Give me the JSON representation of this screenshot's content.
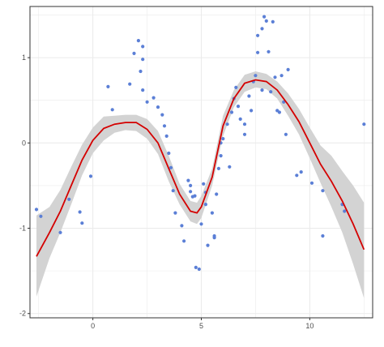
{
  "chart_data": {
    "type": "scatter",
    "title": "",
    "xlabel": "",
    "ylabel": "",
    "xlim": [
      -2.9,
      12.9
    ],
    "ylim": [
      -2.05,
      1.6
    ],
    "x_ticks": [
      0,
      5,
      10
    ],
    "y_ticks": [
      -2,
      -1,
      0,
      1
    ],
    "x_tick_labels": [
      "0",
      "5",
      "10"
    ],
    "y_tick_labels": [
      "-2",
      "-1",
      "0",
      "1"
    ],
    "grid": true,
    "colors": {
      "points": "#5b7fd6",
      "smooth_line": "#d40000",
      "confidence_band": "#d3d3d3",
      "grid": "#ebebeb",
      "axis": "#333333"
    },
    "points": [
      {
        "x": -2.6,
        "y": -0.78
      },
      {
        "x": -2.4,
        "y": -0.86
      },
      {
        "x": -1.5,
        "y": -1.05
      },
      {
        "x": -1.1,
        "y": -0.66
      },
      {
        "x": -0.6,
        "y": -0.81
      },
      {
        "x": -0.5,
        "y": -0.94
      },
      {
        "x": -0.1,
        "y": -0.39
      },
      {
        "x": 0.7,
        "y": 0.66
      },
      {
        "x": 0.9,
        "y": 0.39
      },
      {
        "x": 1.7,
        "y": 0.69
      },
      {
        "x": 1.9,
        "y": 1.05
      },
      {
        "x": 2.1,
        "y": 1.2
      },
      {
        "x": 2.3,
        "y": 1.13
      },
      {
        "x": 2.3,
        "y": 0.98
      },
      {
        "x": 2.2,
        "y": 0.84
      },
      {
        "x": 2.3,
        "y": 0.62
      },
      {
        "x": 2.5,
        "y": 0.48
      },
      {
        "x": 2.8,
        "y": 0.53
      },
      {
        "x": 3.0,
        "y": 0.42
      },
      {
        "x": 3.2,
        "y": 0.33
      },
      {
        "x": 3.3,
        "y": 0.2
      },
      {
        "x": 3.4,
        "y": 0.08
      },
      {
        "x": 3.5,
        "y": -0.12
      },
      {
        "x": 3.6,
        "y": -0.29
      },
      {
        "x": 3.7,
        "y": -0.56
      },
      {
        "x": 3.8,
        "y": -0.82
      },
      {
        "x": 4.1,
        "y": -0.97
      },
      {
        "x": 4.2,
        "y": -1.15
      },
      {
        "x": 4.4,
        "y": -0.44
      },
      {
        "x": 4.5,
        "y": -0.5
      },
      {
        "x": 4.5,
        "y": -0.57
      },
      {
        "x": 4.6,
        "y": -0.63
      },
      {
        "x": 4.7,
        "y": -0.62
      },
      {
        "x": 4.75,
        "y": -1.46
      },
      {
        "x": 4.9,
        "y": -1.48
      },
      {
        "x": 5.0,
        "y": -0.95
      },
      {
        "x": 5.1,
        "y": -0.48
      },
      {
        "x": 5.2,
        "y": -0.58
      },
      {
        "x": 5.2,
        "y": -0.72
      },
      {
        "x": 5.3,
        "y": -1.2
      },
      {
        "x": 5.5,
        "y": -0.82
      },
      {
        "x": 5.6,
        "y": -1.09
      },
      {
        "x": 5.6,
        "y": -1.11
      },
      {
        "x": 5.7,
        "y": -0.6
      },
      {
        "x": 5.8,
        "y": -0.3
      },
      {
        "x": 5.9,
        "y": -0.15
      },
      {
        "x": 5.9,
        "y": 0.0
      },
      {
        "x": 6.0,
        "y": 0.05
      },
      {
        "x": 6.2,
        "y": 0.22
      },
      {
        "x": 6.3,
        "y": -0.28
      },
      {
        "x": 6.4,
        "y": 0.36
      },
      {
        "x": 6.5,
        "y": 0.52
      },
      {
        "x": 6.6,
        "y": 0.65
      },
      {
        "x": 6.7,
        "y": 0.43
      },
      {
        "x": 6.8,
        "y": 0.28
      },
      {
        "x": 7.0,
        "y": 0.22
      },
      {
        "x": 7.0,
        "y": 0.1
      },
      {
        "x": 7.2,
        "y": 0.55
      },
      {
        "x": 7.3,
        "y": 0.38
      },
      {
        "x": 7.4,
        "y": 0.72
      },
      {
        "x": 7.5,
        "y": 0.79
      },
      {
        "x": 7.6,
        "y": 1.06
      },
      {
        "x": 7.6,
        "y": 1.26
      },
      {
        "x": 7.8,
        "y": 1.34
      },
      {
        "x": 7.8,
        "y": 0.62
      },
      {
        "x": 7.9,
        "y": 1.48
      },
      {
        "x": 8.0,
        "y": 1.43
      },
      {
        "x": 8.1,
        "y": 1.07
      },
      {
        "x": 8.2,
        "y": 0.6
      },
      {
        "x": 8.3,
        "y": 1.42
      },
      {
        "x": 8.4,
        "y": 0.77
      },
      {
        "x": 8.5,
        "y": 0.38
      },
      {
        "x": 8.6,
        "y": 0.36
      },
      {
        "x": 8.7,
        "y": 0.79
      },
      {
        "x": 8.8,
        "y": 0.48
      },
      {
        "x": 8.9,
        "y": 0.1
      },
      {
        "x": 9.0,
        "y": 0.86
      },
      {
        "x": 9.4,
        "y": -0.38
      },
      {
        "x": 9.6,
        "y": -0.34
      },
      {
        "x": 10.1,
        "y": -0.47
      },
      {
        "x": 10.6,
        "y": -0.56
      },
      {
        "x": 10.6,
        "y": -1.09
      },
      {
        "x": 11.5,
        "y": -0.72
      },
      {
        "x": 11.6,
        "y": -0.8
      },
      {
        "x": 12.5,
        "y": 0.22
      }
    ],
    "smooth": {
      "x": [
        -2.6,
        -2.0,
        -1.5,
        -1.0,
        -0.5,
        0.0,
        0.5,
        1.0,
        1.5,
        2.0,
        2.5,
        3.0,
        3.5,
        4.0,
        4.5,
        4.8,
        5.0,
        5.5,
        6.0,
        6.5,
        7.0,
        7.5,
        8.0,
        8.5,
        9.0,
        9.5,
        10.0,
        10.5,
        11.0,
        11.5,
        12.0,
        12.5
      ],
      "y": [
        -1.33,
        -1.05,
        -0.8,
        -0.5,
        -0.2,
        0.03,
        0.17,
        0.22,
        0.24,
        0.24,
        0.16,
        0.0,
        -0.3,
        -0.6,
        -0.8,
        -0.82,
        -0.75,
        -0.4,
        0.2,
        0.52,
        0.7,
        0.74,
        0.72,
        0.62,
        0.45,
        0.25,
        0.0,
        -0.25,
        -0.45,
        -0.68,
        -0.95,
        -1.25
      ],
      "lower": [
        -1.8,
        -1.35,
        -1.05,
        -0.72,
        -0.38,
        -0.12,
        0.03,
        0.12,
        0.15,
        0.14,
        0.05,
        -0.13,
        -0.45,
        -0.72,
        -0.92,
        -0.95,
        -0.88,
        -0.5,
        0.08,
        0.42,
        0.6,
        0.65,
        0.63,
        0.52,
        0.32,
        0.1,
        -0.18,
        -0.47,
        -0.75,
        -1.05,
        -1.42,
        -1.82
      ],
      "upper": [
        -0.85,
        -0.75,
        -0.55,
        -0.28,
        -0.02,
        0.18,
        0.31,
        0.32,
        0.33,
        0.33,
        0.28,
        0.14,
        -0.15,
        -0.48,
        -0.68,
        -0.7,
        -0.62,
        -0.3,
        0.32,
        0.62,
        0.8,
        0.84,
        0.81,
        0.72,
        0.58,
        0.4,
        0.18,
        -0.03,
        -0.15,
        -0.33,
        -0.5,
        -0.7
      ]
    }
  }
}
